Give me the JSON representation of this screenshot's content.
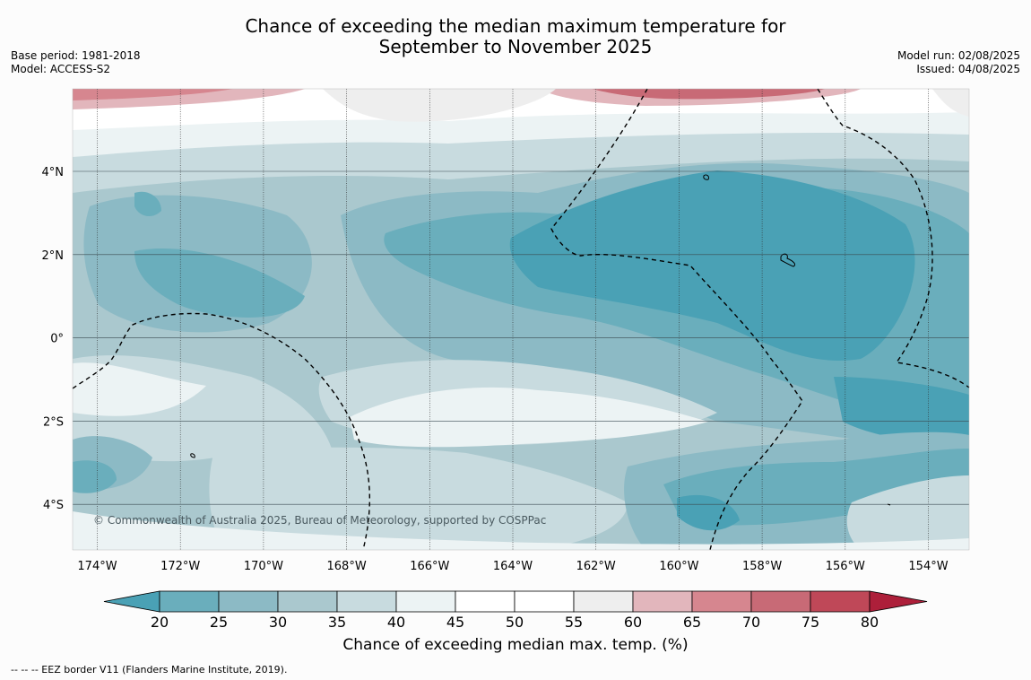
{
  "title_line1": "Chance of exceeding the median maximum temperature for",
  "title_line2": "September to November 2025",
  "base_period": "Base period: 1981-2018",
  "model": "Model: ACCESS-S2",
  "model_run": "Model run: 02/08/2025",
  "issued": "Issued: 04/08/2025",
  "copyright": "© Commonwealth of Australia 2025, Bureau of Meteorology, supported by COSPPac",
  "footer": "--  --  -- EEZ border V11 (Flanders Marine Institute, 2019).",
  "colorbar": {
    "label": "Chance of exceeding median max. temp. (%)",
    "ticks": [
      "20",
      "25",
      "30",
      "35",
      "40",
      "45",
      "50",
      "55",
      "60",
      "65",
      "70",
      "75",
      "80"
    ],
    "colors": [
      "#6aaebc",
      "#8cbac5",
      "#aac8ce",
      "#c8dbdf",
      "#ecf3f4",
      "#ffffff",
      "#ffffff",
      "#eeeeee",
      "#e2b6bc",
      "#d6868f",
      "#c86a76",
      "#bf4858"
    ],
    "under_color": "#4aa1b5",
    "over_color": "#ad1f3a"
  },
  "lon_labels": [
    "174°W",
    "172°W",
    "170°W",
    "168°W",
    "166°W",
    "164°W",
    "162°W",
    "160°W",
    "158°W",
    "156°W",
    "154°W"
  ],
  "lat_labels": [
    "4°N",
    "2°N",
    "0°",
    "2°S",
    "4°S"
  ]
}
